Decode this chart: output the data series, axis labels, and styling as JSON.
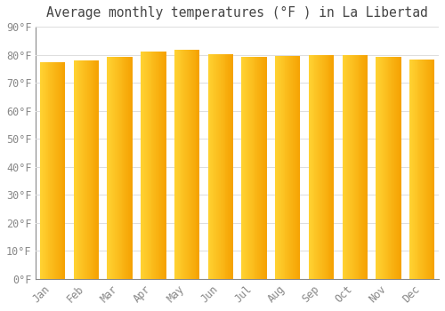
{
  "title": "Average monthly temperatures (°F ) in La Libertad",
  "months": [
    "Jan",
    "Feb",
    "Mar",
    "Apr",
    "May",
    "Jun",
    "Jul",
    "Aug",
    "Sep",
    "Oct",
    "Nov",
    "Dec"
  ],
  "values": [
    77.2,
    77.9,
    79.2,
    81.0,
    81.7,
    80.2,
    79.3,
    79.7,
    79.9,
    79.8,
    79.1,
    78.3
  ],
  "bar_color_left": "#FFD040",
  "bar_color_right": "#F5A000",
  "background_color": "#FFFFFF",
  "grid_color": "#DDDDDD",
  "text_color": "#888888",
  "title_color": "#444444",
  "spine_color": "#888888",
  "ylim": [
    0,
    90
  ],
  "ytick_interval": 10,
  "title_fontsize": 10.5,
  "tick_fontsize": 8.5
}
